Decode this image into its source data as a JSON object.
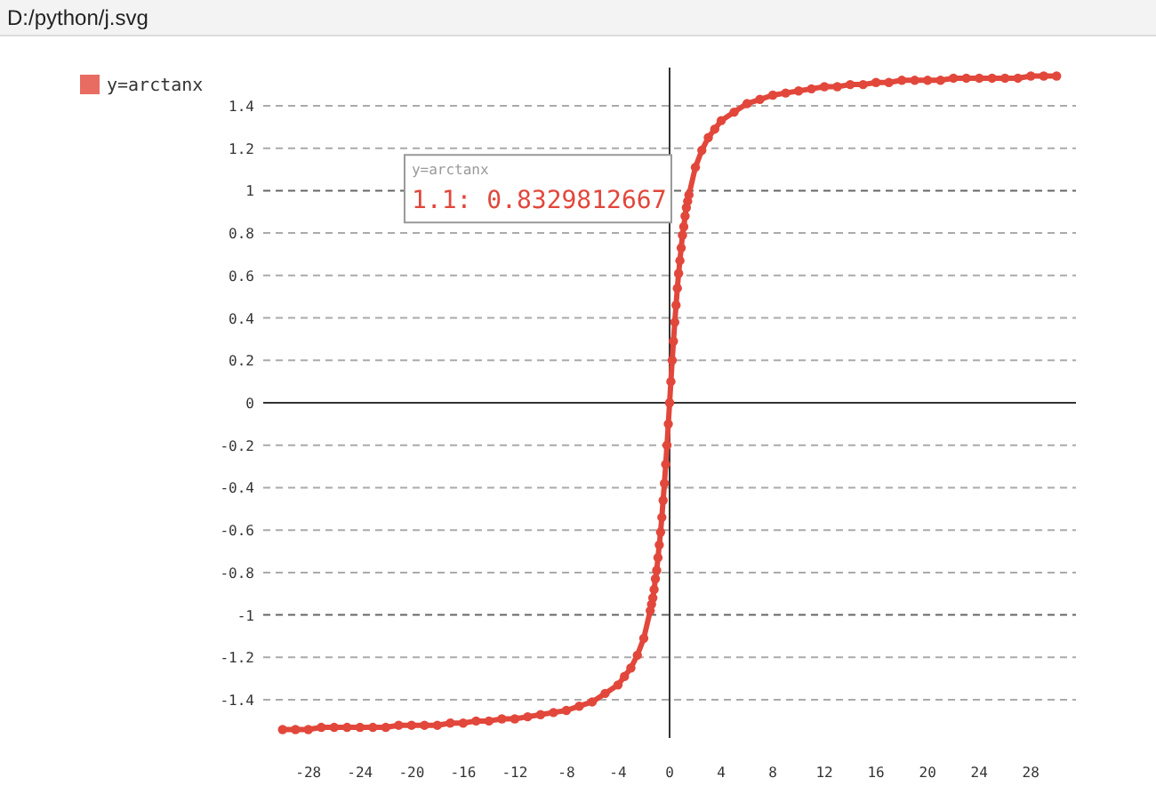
{
  "chart_data": {
    "type": "line",
    "annotations": [
      "D:/python/j.svg",
      {
        "text": "1.1: 0.8329812667",
        "x": 1.1,
        "y": 0.8329812667
      }
    ],
    "series": [
      {
        "name": "y=arctanx",
        "color": "#e2473b",
        "x": [
          -30,
          -29,
          -28,
          -27,
          -26,
          -25,
          -24,
          -23,
          -22,
          -21,
          -20,
          -19,
          -18,
          -17,
          -16,
          -15,
          -14,
          -13,
          -12,
          -11,
          -10,
          -9,
          -8,
          -7,
          -6,
          -5,
          -4,
          -3.5,
          -3,
          -2.5,
          -2,
          -1.5,
          -1.4,
          -1.3,
          -1.2,
          -1.1,
          -1,
          -0.9,
          -0.8,
          -0.7,
          -0.6,
          -0.5,
          -0.4,
          -0.3,
          -0.2,
          -0.1,
          0,
          0.1,
          0.2,
          0.3,
          0.4,
          0.5,
          0.6,
          0.7,
          0.8,
          0.9,
          1,
          1.1,
          1.2,
          1.3,
          1.4,
          1.5,
          2,
          2.5,
          3,
          3.5,
          4,
          5,
          6,
          7,
          8,
          9,
          10,
          11,
          12,
          13,
          14,
          15,
          16,
          17,
          18,
          19,
          20,
          21,
          22,
          23,
          24,
          25,
          26,
          27,
          28,
          29,
          30
        ],
        "values": [
          -1.54,
          -1.54,
          -1.54,
          -1.53,
          -1.53,
          -1.53,
          -1.53,
          -1.53,
          -1.53,
          -1.52,
          -1.52,
          -1.52,
          -1.52,
          -1.51,
          -1.51,
          -1.5,
          -1.5,
          -1.49,
          -1.49,
          -1.48,
          -1.47,
          -1.46,
          -1.45,
          -1.43,
          -1.41,
          -1.37,
          -1.33,
          -1.29,
          -1.25,
          -1.19,
          -1.11,
          -0.98,
          -0.95,
          -0.92,
          -0.88,
          -0.83,
          -0.79,
          -0.73,
          -0.67,
          -0.61,
          -0.54,
          -0.46,
          -0.38,
          -0.29,
          -0.2,
          -0.1,
          0,
          0.1,
          0.2,
          0.29,
          0.38,
          0.46,
          0.54,
          0.61,
          0.67,
          0.73,
          0.79,
          0.83,
          0.88,
          0.92,
          0.95,
          0.98,
          1.11,
          1.19,
          1.25,
          1.29,
          1.33,
          1.37,
          1.41,
          1.43,
          1.45,
          1.46,
          1.47,
          1.48,
          1.49,
          1.49,
          1.5,
          1.5,
          1.51,
          1.51,
          1.52,
          1.52,
          1.52,
          1.52,
          1.53,
          1.53,
          1.53,
          1.53,
          1.53,
          1.53,
          1.54,
          1.54,
          1.54
        ]
      }
    ],
    "xlim": [
      -31.5,
      31.5
    ],
    "xticks": [
      -28,
      -24,
      -20,
      -16,
      -12,
      -8,
      -4,
      0,
      4,
      8,
      12,
      16,
      20,
      24,
      28
    ],
    "ylim": [
      -1.58,
      1.58
    ],
    "yticks": [
      -1.4,
      -1.2,
      -1,
      -0.8,
      -0.6,
      -0.4,
      -0.2,
      0,
      0.2,
      0.4,
      0.6,
      0.8,
      1,
      1.2,
      1.4
    ],
    "grid": "y",
    "ref_lines": [
      {
        "axis": "x",
        "value": 0,
        "color": "#333333"
      }
    ],
    "legend": "top left",
    "marker": "circle",
    "line_style": "solid"
  }
}
